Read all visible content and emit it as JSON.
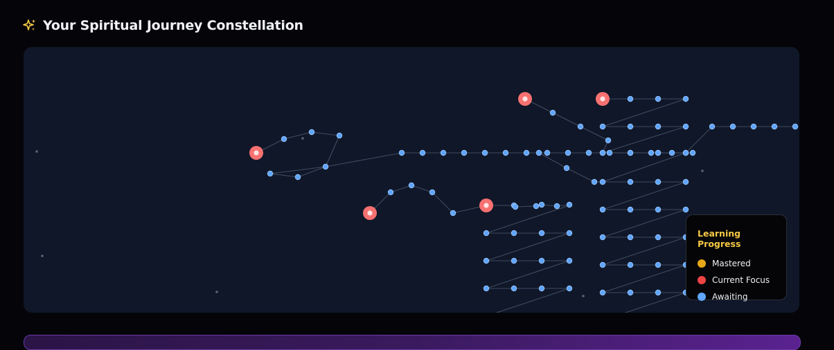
{
  "header": {
    "title": "Your Spiritual Journey Constellation",
    "icon": "sparkles-icon"
  },
  "legend": {
    "title": "Learning Progress",
    "items": [
      {
        "label": "Mastered",
        "color": "#e6a817"
      },
      {
        "label": "Current Focus",
        "color": "#ef4444"
      },
      {
        "label": "Awaiting",
        "color": "#60a5fa"
      }
    ]
  },
  "colors": {
    "background": "#050509",
    "panel": "#0f1729",
    "awaiting": "#60a5fa",
    "current": "#f87171",
    "link": "#4b5568",
    "title_accent": "#f6c945"
  }
}
